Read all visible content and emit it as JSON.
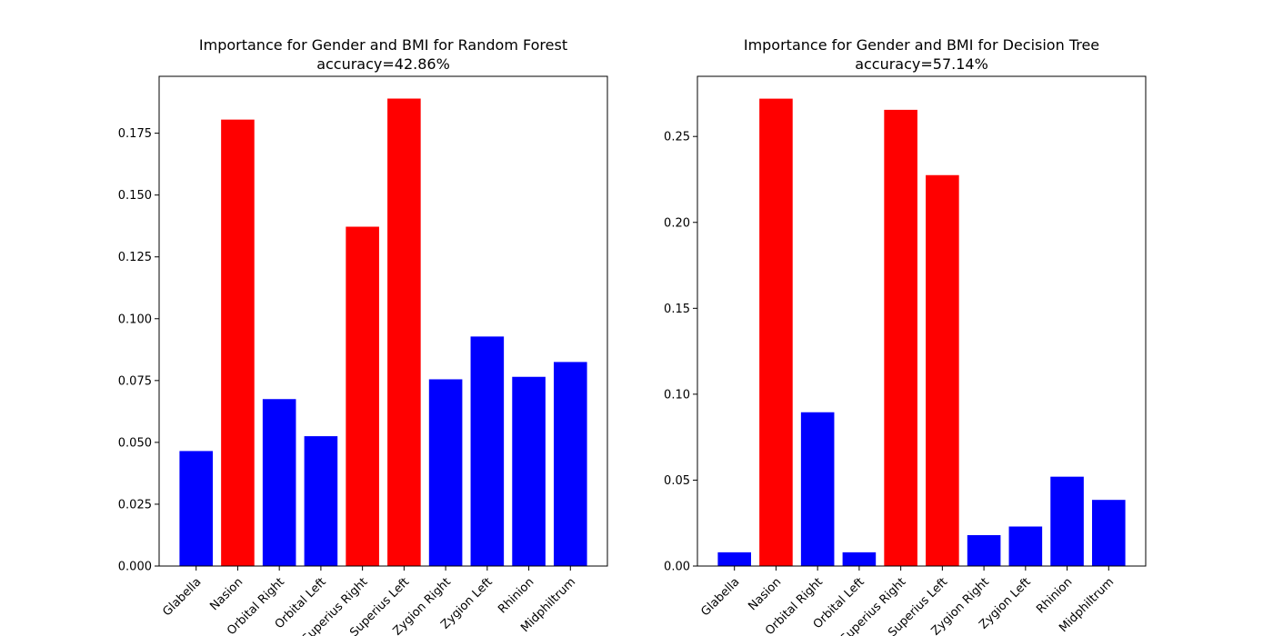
{
  "chart_data": [
    {
      "type": "bar",
      "title": "Importance for Gender and BMI for Random Forest",
      "subtitle": "accuracy=42.86%",
      "xlabel": "",
      "ylabel": "",
      "categories": [
        "Glabella",
        "Nasion",
        "Orbital Right",
        "Orbital Left",
        "Superius Right",
        "Superius Left",
        "Zygion Right",
        "Zygion Left",
        "Rhinion",
        "Midphiltrum"
      ],
      "values": [
        0.0465,
        0.1805,
        0.0675,
        0.0525,
        0.1372,
        0.189,
        0.0755,
        0.0928,
        0.0765,
        0.0825
      ],
      "colors": [
        "#0000ff",
        "#ff0000",
        "#0000ff",
        "#0000ff",
        "#ff0000",
        "#ff0000",
        "#0000ff",
        "#0000ff",
        "#0000ff",
        "#0000ff"
      ],
      "ylim": [
        0,
        0.198
      ],
      "yticks": [
        "0.000",
        "0.025",
        "0.050",
        "0.075",
        "0.100",
        "0.125",
        "0.150",
        "0.175"
      ],
      "grid": false,
      "legend": "none"
    },
    {
      "type": "bar",
      "title": "Importance for Gender and BMI for Decision Tree",
      "subtitle": "accuracy=57.14%",
      "xlabel": "",
      "ylabel": "",
      "categories": [
        "Glabella",
        "Nasion",
        "Orbital Right",
        "Orbital Left",
        "Superius Right",
        "Superius Left",
        "Zygion Right",
        "Zygion Left",
        "Rhinion",
        "Midphiltrum"
      ],
      "values": [
        0.008,
        0.272,
        0.0895,
        0.008,
        0.2655,
        0.2275,
        0.018,
        0.023,
        0.052,
        0.0385
      ],
      "colors": [
        "#0000ff",
        "#ff0000",
        "#0000ff",
        "#0000ff",
        "#ff0000",
        "#ff0000",
        "#0000ff",
        "#0000ff",
        "#0000ff",
        "#0000ff"
      ],
      "ylim": [
        0,
        0.285
      ],
      "yticks": [
        "0.00",
        "0.05",
        "0.10",
        "0.15",
        "0.20",
        "0.25"
      ],
      "grid": false,
      "legend": "none"
    }
  ]
}
